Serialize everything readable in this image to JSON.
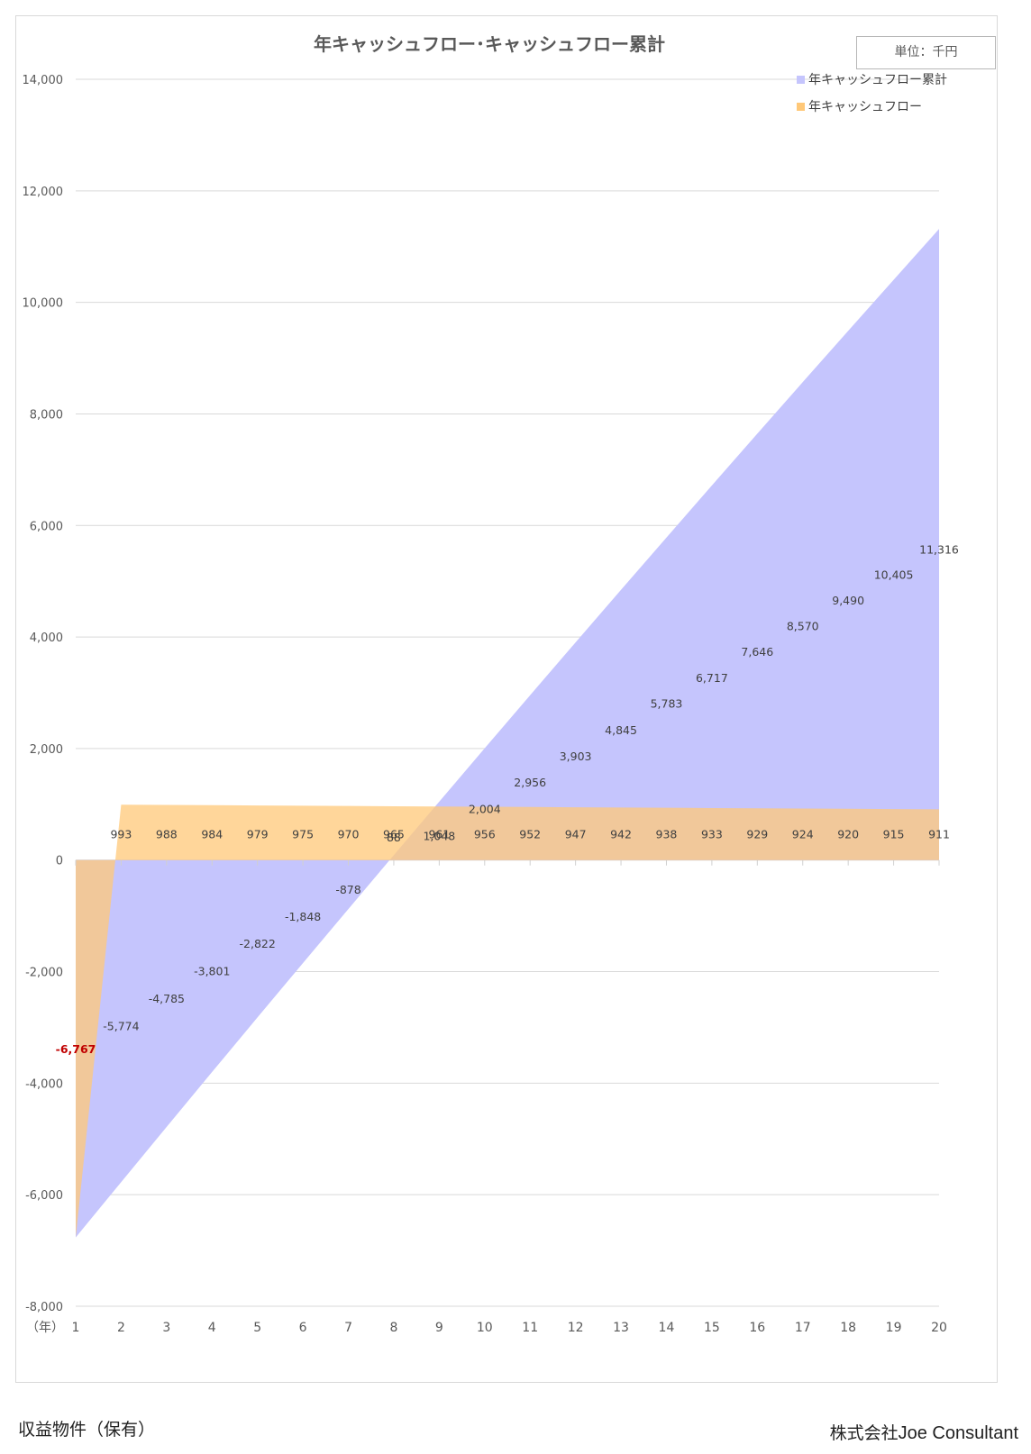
{
  "chart_data": {
    "type": "area",
    "title": "年キャッシュフロー･キャッシュフロー累計",
    "unit": "単位：千円",
    "xlabel": "（年）",
    "x": [
      1,
      2,
      3,
      4,
      5,
      6,
      7,
      8,
      9,
      10,
      11,
      12,
      13,
      14,
      15,
      16,
      17,
      18,
      19,
      20
    ],
    "ylim": [
      -8000,
      14000
    ],
    "yticks": [
      -8000,
      -6000,
      -4000,
      -2000,
      0,
      2000,
      4000,
      6000,
      8000,
      10000,
      12000,
      14000
    ],
    "ytick_labels": [
      "-8,000",
      "-6,000",
      "-4,000",
      "-2,000",
      "0",
      "2,000",
      "4,000",
      "6,000",
      "8,000",
      "10,000",
      "12,000",
      "14,000"
    ],
    "grid": true,
    "legend_position": "top-right",
    "series": [
      {
        "name": "年キャッシュフロー累計",
        "color": "#c5c5fd",
        "values": [
          -6767,
          -5774,
          -4785,
          -3801,
          -2822,
          -1848,
          -878,
          88,
          1048,
          2004,
          2956,
          3903,
          4845,
          5783,
          6717,
          7646,
          8570,
          9490,
          10405,
          11316
        ],
        "labels": [
          "",
          "-5,774",
          "-4,785",
          "-3,801",
          "-2,822",
          "-1,848",
          "-878",
          "88",
          "1,048",
          "2,004",
          "2,956",
          "3,903",
          "4,845",
          "5,783",
          "6,717",
          "7,646",
          "8,570",
          "9,490",
          "10,405",
          "11,316"
        ]
      },
      {
        "name": "年キャッシュフロー",
        "color": "#ffc878",
        "values": [
          -6767,
          993,
          988,
          984,
          979,
          975,
          970,
          965,
          961,
          956,
          952,
          947,
          942,
          938,
          933,
          929,
          924,
          920,
          915,
          911
        ],
        "labels": [
          "-6,767",
          "993",
          "988",
          "984",
          "979",
          "975",
          "970",
          "965",
          "961",
          "956",
          "952",
          "947",
          "942",
          "938",
          "933",
          "929",
          "924",
          "920",
          "915",
          "911"
        ],
        "highlight_color": "#c00000"
      }
    ]
  },
  "footer": {
    "left": "収益物件（保有）",
    "right_prefix": "株式会社",
    "right_brand": "Joe Consultant"
  }
}
